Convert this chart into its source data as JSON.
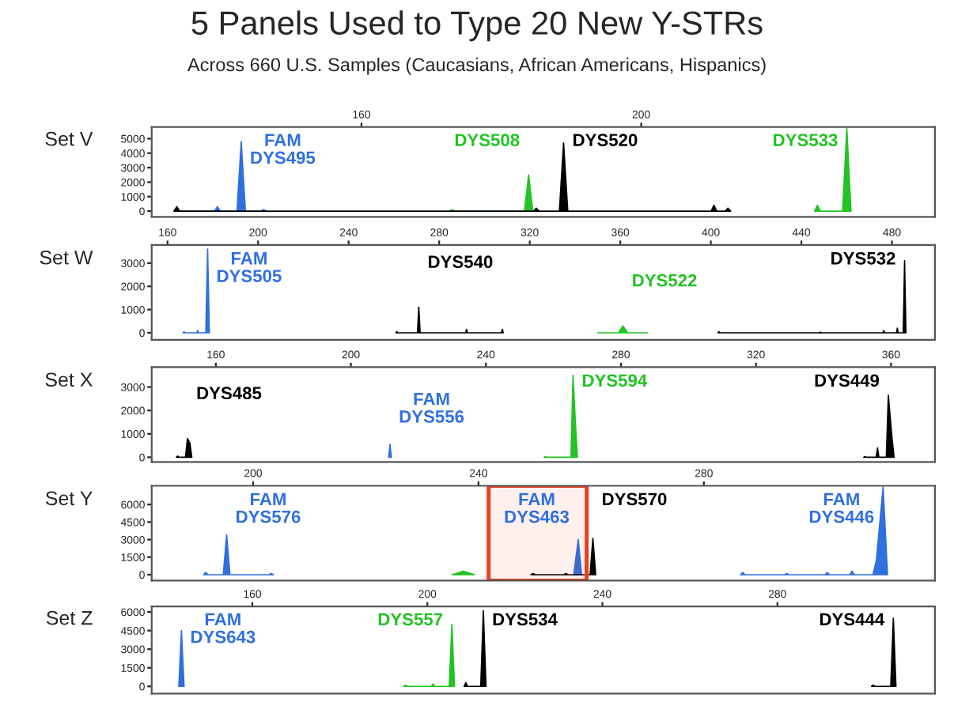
{
  "chart_data": [
    {
      "type": "area",
      "title": "5 Panels Used to Type 20 New Y-STRs",
      "subtitle": "Across 660 U.S. Samples (Caucasians, African Americans, Hispanics)",
      "ylabel": "Set V",
      "xlim": [
        130,
        242
      ],
      "xticks": [
        160,
        200
      ],
      "ylim": [
        -400,
        5800
      ],
      "yticks": [
        0,
        1000,
        2000,
        3000,
        4000,
        5000
      ],
      "grid": false,
      "legend": false,
      "series": [
        {
          "name": "FAM\nDYS495",
          "color": "#2f6fe0",
          "x": [
            133.2,
            133.6,
            134.0,
            139.0,
            139.4,
            139.8,
            142.2,
            142.8,
            143.4,
            145.6,
            146.0,
            146.4
          ],
          "values": [
            0,
            200,
            0,
            0,
            300,
            0,
            0,
            4800,
            0,
            0,
            100,
            0
          ]
        },
        {
          "name": "DYS508",
          "color": "#22c322",
          "x": [
            172.6,
            173.0,
            173.4,
            183.3,
            183.9,
            184.5
          ],
          "values": [
            0,
            100,
            0,
            0,
            2500,
            0
          ]
        },
        {
          "name": "DYS520",
          "color": "#000000",
          "x": [
            133.2,
            133.6,
            134.0,
            184.6,
            185.0,
            185.4,
            188.3,
            188.9,
            189.5,
            210.0,
            210.4,
            210.8,
            212.0,
            212.4,
            212.8
          ],
          "values": [
            0,
            300,
            0,
            0,
            200,
            0,
            0,
            4700,
            0,
            0,
            400,
            0,
            0,
            200,
            0
          ]
        },
        {
          "name": "DYS533",
          "color": "#22c322",
          "x": [
            224.8,
            225.2,
            225.6,
            228.8,
            229.4,
            230.0
          ],
          "values": [
            0,
            400,
            0,
            0,
            5700,
            0
          ]
        }
      ]
    },
    {
      "type": "area",
      "ylabel": "Set W",
      "xlim": [
        153,
        499
      ],
      "xticks": [
        160,
        200,
        240,
        280,
        320,
        360,
        400,
        440,
        480
      ],
      "ylim": [
        -300,
        3780
      ],
      "yticks": [
        0,
        1000,
        2000,
        3000
      ],
      "grid": false,
      "legend": false,
      "series": [
        {
          "name": "FAM\nDYS505",
          "color": "#2f6fe0",
          "x": [
            166.9,
            167.3,
            167.7,
            172.9,
            173.3,
            173.7,
            176.9,
            177.7,
            178.5
          ],
          "values": [
            0,
            50,
            0,
            0,
            100,
            0,
            0,
            3600,
            0
          ]
        },
        {
          "name": "DYS540",
          "color": "#000000",
          "x": [
            260.9,
            261.3,
            261.7,
            270.4,
            271.0,
            271.6,
            291.7,
            292.1,
            292.5,
            307.5,
            307.9,
            308.3
          ],
          "values": [
            0,
            50,
            0,
            0,
            1100,
            0,
            0,
            150,
            0,
            0,
            150,
            0
          ]
        },
        {
          "name": "DYS522",
          "color": "#22c322",
          "x": [
            350.0,
            359.2,
            361.2,
            363.2,
            372.0
          ],
          "values": [
            0,
            0,
            300,
            0,
            0
          ]
        },
        {
          "name": "DYS532",
          "color": "#000000",
          "x": [
            403.2,
            403.6,
            404.0,
            448.1,
            448.5,
            448.9,
            476.0,
            476.4,
            476.8,
            482.0,
            482.4,
            482.8,
            485.0,
            485.6,
            486.2
          ],
          "values": [
            0,
            50,
            0,
            0,
            30,
            0,
            0,
            100,
            0,
            0,
            200,
            0,
            0,
            3100,
            0
          ]
        }
      ]
    },
    {
      "type": "area",
      "ylabel": "Set X",
      "xlim": [
        141,
        373
      ],
      "xticks": [
        160,
        200,
        240,
        280,
        320,
        360
      ],
      "ylim": [
        -200,
        3850
      ],
      "yticks": [
        0,
        1000,
        2000,
        3000
      ],
      "grid": false,
      "legend": false,
      "series": [
        {
          "name": "DYS485",
          "color": "#000000",
          "x": [
            148.3,
            148.7,
            149.1,
            151.0,
            151.6,
            152.3,
            152.9
          ],
          "values": [
            0,
            50,
            0,
            0,
            800,
            600,
            0
          ]
        },
        {
          "name": "FAM\nDYS556",
          "color": "#2f6fe0",
          "x": [
            211.2,
            211.6,
            212.0
          ],
          "values": [
            0,
            550,
            0
          ]
        },
        {
          "name": "DYS594",
          "color": "#22c322",
          "x": [
            257.2,
            257.6,
            258.0,
            265.2,
            265.8,
            266.5,
            267.1
          ],
          "values": [
            0,
            30,
            0,
            0,
            3500,
            1500,
            0
          ]
        },
        {
          "name": "DYS449",
          "color": "#000000",
          "x": [
            351.9,
            352.3,
            352.7,
            355.6,
            356.0,
            356.4,
            358.6,
            359.2,
            360.3,
            360.9
          ],
          "values": [
            0,
            30,
            0,
            0,
            400,
            0,
            0,
            2650,
            800,
            0
          ]
        }
      ]
    },
    {
      "type": "area",
      "ylabel": "Set Y",
      "xlim": [
        182,
        321
      ],
      "xticks": [
        200,
        240,
        280
      ],
      "ylim": [
        -500,
        7600
      ],
      "yticks": [
        0,
        1500,
        3000,
        4500,
        6000
      ],
      "grid": false,
      "legend": false,
      "bands": [
        {
          "axis": "x",
          "from": 241.8,
          "to": 259.2,
          "color": "#e8401c"
        }
      ],
      "series": [
        {
          "name": "FAM\nDYS576",
          "color": "#2f6fe0",
          "x": [
            191.2,
            191.6,
            192.0,
            194.7,
            195.3,
            195.9,
            202.8,
            203.2,
            203.6
          ],
          "values": [
            0,
            200,
            0,
            0,
            3400,
            0,
            0,
            100,
            0
          ]
        },
        {
          "color": "#22c322",
          "x": [
            235.3,
            237.3,
            239.3
          ],
          "values": [
            0,
            300,
            0
          ]
        },
        {
          "name": "FAM\nDYS463",
          "color": "#2f6fe0",
          "x": [
            256.9,
            257.7,
            258.3
          ],
          "values": [
            0,
            3000,
            0
          ]
        },
        {
          "name": "DYS570",
          "color": "#000000",
          "x": [
            249.3,
            249.7,
            250.1,
            255.1,
            255.5,
            255.9,
            259.8,
            260.3,
            260.8
          ],
          "values": [
            0,
            100,
            0,
            0,
            100,
            0,
            0,
            3100,
            0
          ]
        },
        {
          "name": "FAM\nDYS446",
          "color": "#2f6fe0",
          "x": [
            286.5,
            286.9,
            287.3,
            294.3,
            294.7,
            295.1,
            301.5,
            301.9,
            302.3,
            305.9,
            306.3,
            306.7,
            310.0,
            310.6,
            311.8,
            312.6
          ],
          "values": [
            0,
            200,
            0,
            0,
            100,
            0,
            0,
            200,
            0,
            0,
            300,
            0,
            0,
            1200,
            7500,
            0
          ]
        }
      ]
    },
    {
      "type": "area",
      "ylabel": "Set Z",
      "xlim": [
        137,
        316
      ],
      "xticks": [
        160,
        200,
        240,
        280
      ],
      "ylim": [
        -580,
        6440
      ],
      "yticks": [
        0,
        1500,
        3000,
        4500,
        6000
      ],
      "grid": false,
      "legend": false,
      "series": [
        {
          "name": "FAM\nDYS643",
          "color": "#2f6fe0",
          "x": [
            143.2,
            143.8,
            144.4
          ],
          "values": [
            0,
            4500,
            0
          ]
        },
        {
          "name": "DYS557",
          "color": "#22c322",
          "x": [
            194.6,
            195.0,
            195.4,
            200.9,
            201.3,
            201.7,
            205.0,
            205.6,
            206.2
          ],
          "values": [
            0,
            100,
            0,
            0,
            200,
            0,
            0,
            5000,
            0
          ]
        },
        {
          "name": "DYS534",
          "color": "#000000",
          "x": [
            208.4,
            208.8,
            209.2,
            212.2,
            212.8,
            213.4
          ],
          "values": [
            0,
            300,
            0,
            0,
            6100,
            0
          ]
        },
        {
          "name": "DYS444",
          "color": "#000000",
          "x": [
            301.5,
            301.9,
            302.3,
            305.9,
            306.5,
            307.1
          ],
          "values": [
            0,
            100,
            0,
            0,
            5500,
            0
          ]
        }
      ]
    }
  ]
}
